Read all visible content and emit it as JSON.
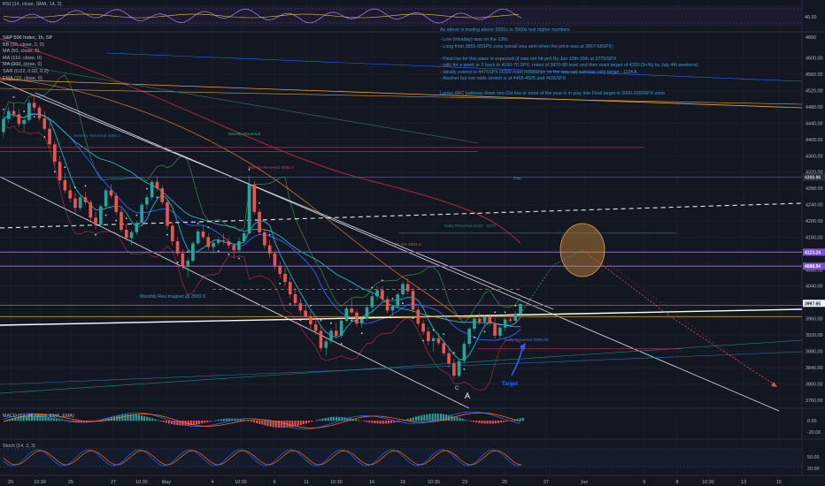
{
  "colors": {
    "background": "#131722",
    "grid": "#1e222d",
    "up_candle": "#26a69a",
    "down_candle": "#ef5350",
    "upper_channel": "#d1d4dc",
    "white_support": "#ffffff",
    "orange_line": "#f0a030",
    "note_text": "#3d9ad6",
    "purple_levels": "#7b4fd6",
    "target_ellipse": "#c9893a"
  },
  "rsi_panel": {
    "label": "RSI (14, close, SMA, 14, 2)",
    "axis_value": "40.00"
  },
  "main_legend": {
    "symbol": "S&P 500 Index, 1h, SP",
    "indicators": [
      "BB (20, close, 2, 0)",
      "MA (50, close, 0)",
      "MA (110, close, 0)",
      "MA (200, close, 0)",
      "SAR (0.02, 0.02, 0.2)",
      "EMA (10, close, 0)"
    ]
  },
  "notes": {
    "top_partial": "As above is trading above 3955s to 3960s test higher numbers",
    "lines": [
      "- Low (intraday) was on the 12th;",
      "- Long from 3855-65SPX zone (email was sent when the price was at 3867-68SPX)",
      "",
      "- Final low for this wave is expected (if was not hit yet) By Jun 13th-15th at 3775ISPX",
      "- rally for a week or 2 back to 4160-70 SPX, retest of 3870-80 level and then main target  of 4300 (9+%) by July 4th weekend,",
      "- Ideally extend to 4475SPX (4300 main resistance on the way up) summer rally target  - 110KA",
      "- Another but low odds stretch is at 4465-4505 and 4600SPX"
    ],
    "abc_note": "Larger ABC pathway down into Oct low or more of the year is in play into Final target in 3000-3300SPX zone"
  },
  "chart_labels": {
    "gap_top": "Gap",
    "weekly_reversal": "Weekly Reversal 4285.4",
    "daily_reversal_high": "Daily Reversal 4145 - 4170",
    "daily_reversal_low": "Daily Reversal 3885.85",
    "monthly_rev_magnet": "Monthly Rev magnet @ 3992.6",
    "key_level_382": "38.2% 4031.8",
    "monthly_reversal_left": "Monthly Reversal 4380.4",
    "weekly_reversal_left": "Weekly Reversal",
    "wave_c_label": "C",
    "wave_a_label": "A",
    "target_label": "Target"
  },
  "price_axis": {
    "ticks": [
      "4600.00",
      "4560.00",
      "4520.00",
      "4480.00",
      "4440.00",
      "4400.00",
      "4360.00",
      "4320.00",
      "4280.00",
      "4240.00",
      "4200.00",
      "4160.00",
      "4120.00",
      "4080.00",
      "4040.00",
      "4000.00",
      "3960.00",
      "3920.00",
      "3880.00",
      "3840.00",
      "3800.00",
      "3760.00"
    ],
    "top_partial": "4650",
    "price_tags": [
      {
        "text": "4306.96",
        "color": "#2a2e39",
        "fg": "#d1d4dc"
      },
      {
        "text": "4123.24",
        "color": "#7b4fd6",
        "fg": "#ffffff"
      },
      {
        "text": "4088.84",
        "color": "#7b4fd6",
        "fg": "#ffffff"
      },
      {
        "text": "3997.65",
        "color": "#f0f3fa",
        "fg": "#131722"
      }
    ]
  },
  "macd_panel": {
    "label": "MACD (12, 26, close, EMA, EMA)",
    "axis_ticks": [
      "0.00",
      "-20.00"
    ]
  },
  "stoch_panel": {
    "label": "Stoch (14, 3, 3)",
    "axis_ticks": [
      "50.00",
      "20.00"
    ]
  },
  "time_axis": {
    "labels": [
      "20",
      "10:30",
      "25",
      "27",
      "10:30",
      "May",
      "4",
      "10:30",
      "9",
      "11",
      "10:30",
      "16",
      "18",
      "10:30",
      "23",
      "25",
      "27",
      "Jun",
      "6",
      "8",
      "10:30",
      "13",
      "15"
    ]
  },
  "chart_data": {
    "type": "candlestick",
    "symbol": "S&P 500 Index, 1h, SP",
    "ylim": [
      3740,
      4660
    ],
    "candles": [
      [
        4418,
        4460,
        4405,
        4450
      ],
      [
        4450,
        4480,
        4440,
        4470
      ],
      [
        4470,
        4490,
        4455,
        4462
      ],
      [
        4462,
        4475,
        4430,
        4438
      ],
      [
        4438,
        4455,
        4420,
        4448
      ],
      [
        4448,
        4498,
        4440,
        4490
      ],
      [
        4490,
        4512,
        4470,
        4478
      ],
      [
        4478,
        4484,
        4446,
        4452
      ],
      [
        4452,
        4470,
        4420,
        4426
      ],
      [
        4426,
        4440,
        4378,
        4388
      ],
      [
        4388,
        4395,
        4335,
        4345
      ],
      [
        4345,
        4360,
        4290,
        4300
      ],
      [
        4300,
        4318,
        4268,
        4275
      ],
      [
        4275,
        4290,
        4245,
        4255
      ],
      [
        4255,
        4268,
        4220,
        4232
      ],
      [
        4232,
        4262,
        4225,
        4258
      ],
      [
        4258,
        4272,
        4240,
        4246
      ],
      [
        4246,
        4250,
        4200,
        4208
      ],
      [
        4208,
        4222,
        4180,
        4190
      ],
      [
        4190,
        4240,
        4185,
        4236
      ],
      [
        4236,
        4280,
        4228,
        4275
      ],
      [
        4275,
        4290,
        4255,
        4262
      ],
      [
        4262,
        4270,
        4215,
        4222
      ],
      [
        4222,
        4230,
        4172,
        4178
      ],
      [
        4178,
        4192,
        4150,
        4158
      ],
      [
        4158,
        4178,
        4140,
        4172
      ],
      [
        4172,
        4200,
        4165,
        4195
      ],
      [
        4195,
        4245,
        4190,
        4240
      ],
      [
        4240,
        4265,
        4228,
        4258
      ],
      [
        4258,
        4300,
        4250,
        4296
      ],
      [
        4296,
        4310,
        4272,
        4280
      ],
      [
        4280,
        4288,
        4240,
        4246
      ],
      [
        4246,
        4256,
        4180,
        4188
      ],
      [
        4188,
        4198,
        4140,
        4150
      ],
      [
        4150,
        4160,
        4112,
        4120
      ],
      [
        4120,
        4130,
        4080,
        4088
      ],
      [
        4088,
        4110,
        4062,
        4102
      ],
      [
        4102,
        4150,
        4098,
        4145
      ],
      [
        4145,
        4180,
        4140,
        4174
      ],
      [
        4174,
        4190,
        4155,
        4160
      ],
      [
        4160,
        4170,
        4128,
        4136
      ],
      [
        4136,
        4150,
        4120,
        4146
      ],
      [
        4146,
        4160,
        4140,
        4152
      ],
      [
        4152,
        4168,
        4142,
        4150
      ],
      [
        4150,
        4158,
        4132,
        4140
      ],
      [
        4140,
        4146,
        4110,
        4128
      ],
      [
        4128,
        4160,
        4122,
        4150
      ],
      [
        4150,
        4176,
        4145,
        4170
      ],
      [
        4170,
        4312,
        4165,
        4290
      ],
      [
        4290,
        4298,
        4215,
        4222
      ],
      [
        4222,
        4230,
        4165,
        4172
      ],
      [
        4172,
        4180,
        4132,
        4140
      ],
      [
        4140,
        4152,
        4110,
        4120
      ],
      [
        4120,
        4128,
        4080,
        4090
      ],
      [
        4090,
        4100,
        4060,
        4070
      ],
      [
        4070,
        4085,
        4040,
        4050
      ],
      [
        4050,
        4062,
        4010,
        4020
      ],
      [
        4020,
        4035,
        3990,
        3998
      ],
      [
        3998,
        4010,
        3970,
        3980
      ],
      [
        3980,
        3996,
        3955,
        3965
      ],
      [
        3965,
        3978,
        3935,
        3946
      ],
      [
        3946,
        3962,
        3920,
        3930
      ],
      [
        3930,
        3942,
        3880,
        3888
      ],
      [
        3888,
        3912,
        3870,
        3904
      ],
      [
        3904,
        3935,
        3898,
        3930
      ],
      [
        3930,
        3950,
        3910,
        3918
      ],
      [
        3918,
        3960,
        3912,
        3955
      ],
      [
        3955,
        3990,
        3950,
        3985
      ],
      [
        3985,
        4008,
        3970,
        3975
      ],
      [
        3975,
        3984,
        3940,
        3948
      ],
      [
        3948,
        3965,
        3938,
        3960
      ],
      [
        3960,
        3992,
        3956,
        3988
      ],
      [
        3988,
        4022,
        3980,
        4015
      ],
      [
        4015,
        4040,
        4005,
        4030
      ],
      [
        4030,
        4040,
        4000,
        4008
      ],
      [
        4008,
        4016,
        3972,
        3980
      ],
      [
        3980,
        3995,
        3962,
        3990
      ],
      [
        3990,
        4025,
        3986,
        4020
      ],
      [
        4020,
        4050,
        4012,
        4045
      ],
      [
        4045,
        4060,
        4020,
        4028
      ],
      [
        4028,
        4035,
        3975,
        3982
      ],
      [
        3982,
        3990,
        3940,
        3948
      ],
      [
        3948,
        3958,
        3920,
        3928
      ],
      [
        3928,
        3940,
        3895,
        3905
      ],
      [
        3905,
        3918,
        3880,
        3912
      ],
      [
        3912,
        3925,
        3895,
        3900
      ],
      [
        3900,
        3908,
        3868,
        3875
      ],
      [
        3875,
        3888,
        3840,
        3850
      ],
      [
        3850,
        3862,
        3812,
        3820
      ],
      [
        3820,
        3860,
        3815,
        3856
      ],
      [
        3856,
        3905,
        3850,
        3898
      ],
      [
        3898,
        3940,
        3890,
        3935
      ],
      [
        3935,
        3968,
        3928,
        3960
      ],
      [
        3960,
        3975,
        3945,
        3952
      ],
      [
        3952,
        3970,
        3942,
        3965
      ],
      [
        3965,
        3972,
        3942,
        3948
      ],
      [
        3948,
        3962,
        3910,
        3918
      ],
      [
        3918,
        3942,
        3912,
        3938
      ],
      [
        3938,
        3962,
        3930,
        3958
      ],
      [
        3958,
        3972,
        3948,
        3955
      ],
      [
        3955,
        3978,
        3950,
        3972
      ],
      [
        3972,
        3998,
        3965,
        3996
      ]
    ],
    "levels": [
      {
        "name": "Monthly Rev magnet",
        "price": 3992.6
      },
      {
        "name": "38.2%",
        "price": 4031.8
      },
      {
        "name": "Daily Reversal",
        "price": 3885.85
      },
      {
        "name": "Weekly Reversal",
        "price": 4285.4
      },
      {
        "name": "Monthly Reversal",
        "price": 4380.4
      },
      {
        "name": "Gap",
        "price": 4306.96
      },
      {
        "name": "purple level",
        "price": 4123.24
      },
      {
        "name": "purple level",
        "price": 4088.84
      }
    ],
    "grid": true
  }
}
